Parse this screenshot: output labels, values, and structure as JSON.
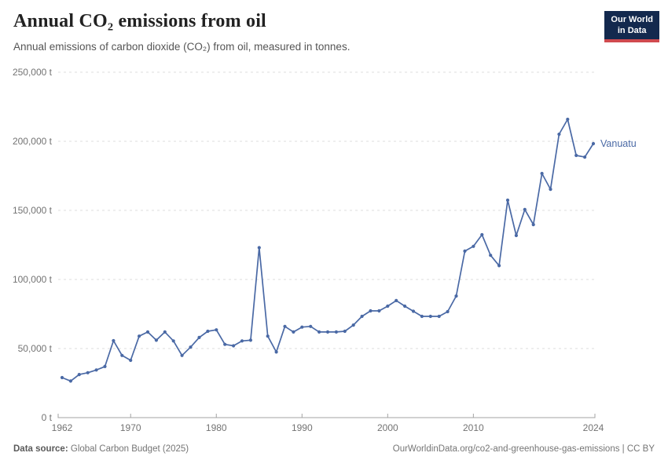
{
  "header": {
    "logo": {
      "line1": "Our World",
      "line2": "in Data"
    }
  },
  "footer": {
    "source_label": "Data source:",
    "source_text": "Global Carbon Budget (2025)",
    "link_text": "OurWorldinData.org/co2-and-greenhouse-gas-emissions | CC BY"
  },
  "colors": {
    "series_blue": "#4a69a5",
    "logo_navy": "#13294e",
    "logo_red": "#d04a4f",
    "grid_gray": "#dcdcdc",
    "axis_gray": "#a3a3a3",
    "tick_text": "#737373"
  },
  "chart_data": {
    "type": "line",
    "title": "Annual CO₂ emissions from oil",
    "subtitle": "Annual emissions of carbon dioxide (CO₂) from oil, measured in tonnes.",
    "xlabel": "",
    "ylabel": "",
    "unit": "t",
    "ylim": [
      0,
      250000
    ],
    "yticks": [
      0,
      50000,
      100000,
      150000,
      200000,
      250000
    ],
    "ytick_labels": [
      "0 t",
      "50,000 t",
      "100,000 t",
      "150,000 t",
      "200,000 t",
      "250,000 t"
    ],
    "xticks": [
      1962,
      1970,
      1980,
      1990,
      2000,
      2010,
      2024
    ],
    "grid": "horizontal-dashed",
    "legend": "inline-end-label",
    "years": [
      1962,
      1963,
      1964,
      1965,
      1966,
      1967,
      1968,
      1969,
      1970,
      1971,
      1972,
      1973,
      1974,
      1975,
      1976,
      1977,
      1978,
      1979,
      1980,
      1981,
      1982,
      1983,
      1984,
      1985,
      1986,
      1987,
      1988,
      1989,
      1990,
      1991,
      1992,
      1993,
      1994,
      1995,
      1996,
      1997,
      1998,
      1999,
      2000,
      2001,
      2002,
      2003,
      2004,
      2005,
      2006,
      2007,
      2008,
      2009,
      2010,
      2011,
      2012,
      2013,
      2014,
      2015,
      2016,
      2017,
      2018,
      2019,
      2020,
      2021,
      2022,
      2023,
      2024
    ],
    "series": [
      {
        "name": "Vanuatu",
        "color": "#4a69a5",
        "values": [
          29000,
          26500,
          31200,
          32500,
          34500,
          37000,
          55700,
          45000,
          41500,
          59000,
          62000,
          56000,
          62000,
          55500,
          45000,
          51000,
          58000,
          62500,
          63500,
          53000,
          52000,
          55500,
          56000,
          123000,
          59000,
          47500,
          66000,
          62000,
          65500,
          66000,
          62000,
          62000,
          62000,
          62500,
          67000,
          73300,
          77300,
          77300,
          80700,
          84700,
          80700,
          77000,
          73300,
          73300,
          73300,
          76700,
          88000,
          120500,
          124000,
          132400,
          117500,
          110000,
          157400,
          131800,
          150600,
          139700,
          176700,
          165300,
          205100,
          215900,
          189800,
          188600,
          198300
        ]
      }
    ]
  }
}
